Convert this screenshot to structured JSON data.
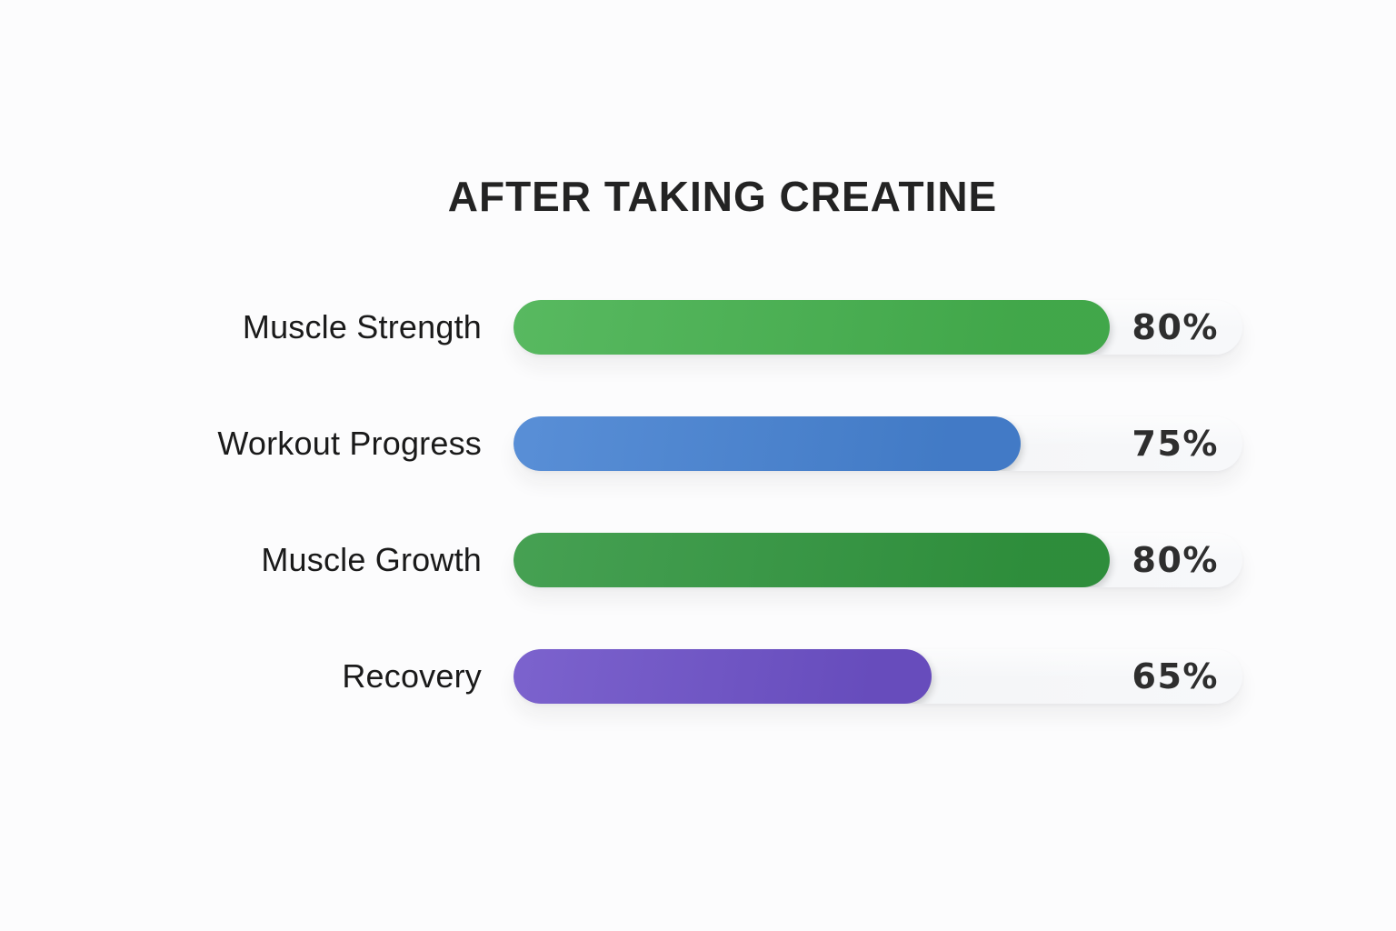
{
  "page": {
    "background_color": "#fcfcfd",
    "title_color": "#232323",
    "label_color": "#1a1a1a",
    "value_color": "#2e2e2e",
    "track_color_left": "#f1f2f4",
    "track_color_right": "#f7f8fa"
  },
  "chart_data": {
    "type": "bar",
    "orientation": "horizontal",
    "title": "AFTER TAKING CREATINE",
    "categories": [
      "Muscle Strength",
      "Workout Progress",
      "Muscle Growth",
      "Recovery"
    ],
    "values": [
      80,
      75,
      80,
      65
    ],
    "value_labels": [
      "80%",
      "75%",
      "80%",
      "65%"
    ],
    "bar_colors": [
      "#45b14e",
      "#4682d2",
      "#31963f",
      "#6d51c8"
    ],
    "display_fill_percents": [
      81.8,
      69.6,
      81.8,
      57.4
    ],
    "xlim": [
      0,
      100
    ],
    "grid": false,
    "legend": false,
    "value_label_position": "inside-track-right"
  }
}
